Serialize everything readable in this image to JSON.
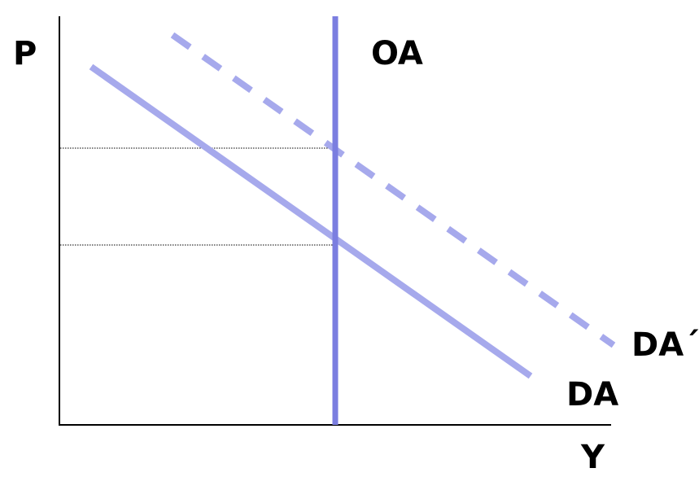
{
  "labels": {
    "p_axis": "P",
    "y_axis": "Y",
    "supply_curve": "OA",
    "shifted_demand_curve": "DA´",
    "demand_curve": "DA"
  },
  "colors": {
    "demand": "#a6a9ec",
    "supply": "#7b7ee0",
    "axis": "#000000",
    "reference_lines": "#000000"
  }
}
